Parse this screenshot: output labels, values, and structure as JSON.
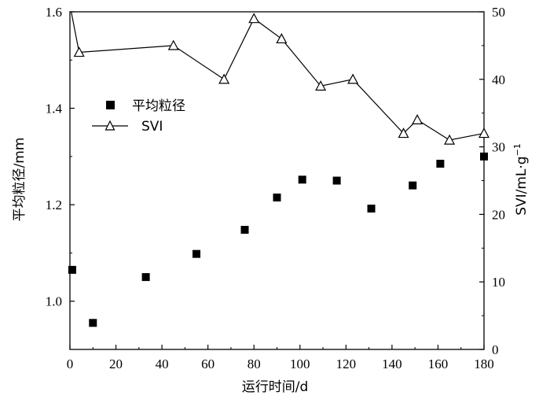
{
  "chart_data": {
    "type": "scatter+line",
    "xlabel": "运行时间/d",
    "ylabel_left": "平均粒径/mm",
    "ylabel_right": "SVI/mL·g",
    "ylabel_right_sup": "−1",
    "xlim": [
      0,
      180
    ],
    "xticks": [
      0,
      20,
      40,
      60,
      80,
      100,
      120,
      140,
      160,
      180
    ],
    "ylim_left": [
      0.9,
      1.6
    ],
    "yticks_left": [
      1.0,
      1.2,
      1.4,
      1.6
    ],
    "ylim_right": [
      0,
      50
    ],
    "yticks_right": [
      0,
      10,
      20,
      30,
      40,
      50
    ],
    "legend_position": "upper-left",
    "series": [
      {
        "name": "平均粒径",
        "axis": "left",
        "marker": "square",
        "line": false,
        "x": [
          1,
          10,
          33,
          55,
          76,
          90,
          101,
          116,
          131,
          149,
          161,
          180
        ],
        "y": [
          1.065,
          0.955,
          1.05,
          1.098,
          1.148,
          1.215,
          1.252,
          1.25,
          1.192,
          1.24,
          1.285,
          1.3
        ]
      },
      {
        "name": "SVI",
        "axis": "right",
        "marker": "triangle",
        "line": true,
        "x": [
          0,
          4,
          45,
          67,
          80,
          92,
          109,
          123,
          145,
          151,
          165,
          180
        ],
        "y": [
          51,
          44,
          45,
          40,
          49,
          46,
          39,
          40,
          32,
          34,
          31,
          32
        ]
      }
    ]
  }
}
